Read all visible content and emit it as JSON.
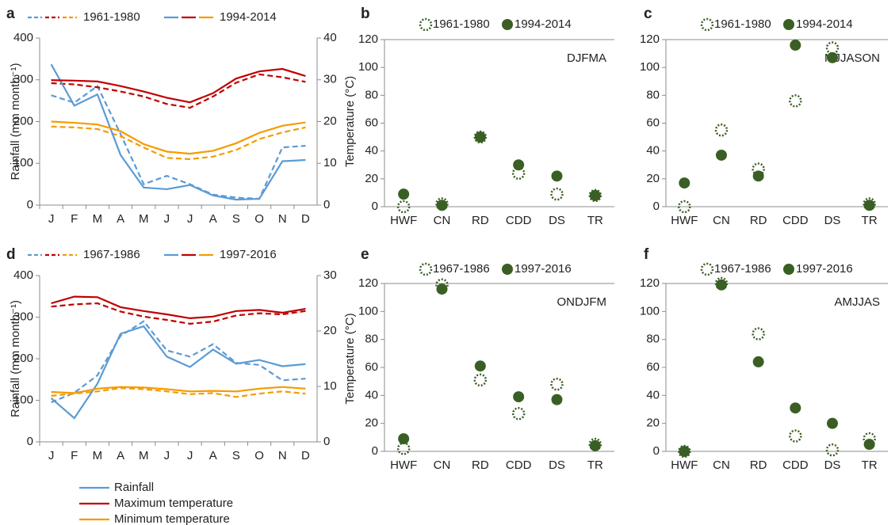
{
  "chart_data": [
    {
      "type": "line",
      "panel": "a",
      "legend": [
        "1961-1980",
        "1994-2014"
      ],
      "categories": [
        "J",
        "F",
        "M",
        "A",
        "M",
        "J",
        "J",
        "A",
        "S",
        "O",
        "N",
        "D"
      ],
      "ylabel": "Rainfall (mm month⁻¹)",
      "y2label": "Temperature (°C)",
      "ylim": [
        0,
        400
      ],
      "yticks": [
        0,
        100,
        200,
        300,
        400
      ],
      "y2lim": [
        0,
        40
      ],
      "y2ticks": [
        0,
        10,
        20,
        30,
        40
      ],
      "series": [
        {
          "color": "#5b9bd5",
          "dash": true,
          "axis": "y",
          "values": [
            263,
            245,
            285,
            170,
            50,
            70,
            50,
            25,
            18,
            15,
            138,
            142
          ]
        },
        {
          "color": "#c00000",
          "dash": true,
          "axis": "y2",
          "values": [
            29.2,
            28.9,
            28.2,
            27.2,
            26,
            24.2,
            23.3,
            26,
            29.3,
            31.3,
            30.6,
            29.5
          ]
        },
        {
          "color": "#f59b00",
          "dash": true,
          "axis": "y2",
          "values": [
            18.8,
            18.6,
            18.2,
            16.5,
            13.8,
            11.3,
            11,
            11.6,
            13.2,
            15.8,
            17.4,
            18.6
          ]
        },
        {
          "color": "#5b9bd5",
          "dash": false,
          "axis": "y",
          "values": [
            337,
            238,
            265,
            120,
            42,
            38,
            48,
            23,
            13,
            15,
            105,
            108
          ]
        },
        {
          "color": "#c00000",
          "dash": false,
          "axis": "y2",
          "values": [
            29.9,
            29.8,
            29.6,
            28.5,
            27.2,
            25.7,
            24.6,
            26.8,
            30.3,
            32,
            32.6,
            30.9
          ]
        },
        {
          "color": "#f59b00",
          "dash": false,
          "axis": "y2",
          "values": [
            20,
            19.7,
            19.3,
            17.7,
            14.6,
            12.8,
            12.3,
            13,
            14.8,
            17.3,
            19,
            19.8
          ]
        }
      ]
    },
    {
      "type": "dot",
      "panel": "b",
      "annotation": "DJFMA",
      "categories": [
        "HWF",
        "CN",
        "RD",
        "CDD",
        "DS",
        "TR"
      ],
      "ylim": [
        0,
        120
      ],
      "yticks": [
        0,
        20,
        40,
        60,
        80,
        100,
        120
      ],
      "color": "#3a5f24",
      "series": [
        {
          "name": "1961-1980",
          "style": "open",
          "values": [
            0,
            2,
            50,
            24,
            9,
            8
          ]
        },
        {
          "name": "1994-2014",
          "style": "filled",
          "values": [
            9,
            1,
            50,
            30,
            22,
            8
          ]
        }
      ]
    },
    {
      "type": "dot",
      "panel": "c",
      "annotation": "MJJASON",
      "categories": [
        "HWF",
        "CN",
        "RD",
        "CDD",
        "DS",
        "TR"
      ],
      "ylim": [
        0,
        120
      ],
      "yticks": [
        0,
        20,
        40,
        60,
        80,
        100,
        120
      ],
      "color": "#3a5f24",
      "series": [
        {
          "name": "1961-1980",
          "style": "open",
          "values": [
            0,
            55,
            27,
            76,
            114,
            2
          ]
        },
        {
          "name": "1994-2014",
          "style": "filled",
          "values": [
            17,
            37,
            22,
            116,
            107,
            1
          ]
        }
      ]
    },
    {
      "type": "line",
      "panel": "d",
      "legend": [
        "1967-1986",
        "1997-2016"
      ],
      "categories": [
        "J",
        "F",
        "M",
        "A",
        "M",
        "J",
        "J",
        "A",
        "S",
        "O",
        "N",
        "D"
      ],
      "ylabel": "Rainfall (mm month⁻¹)",
      "y2label": "Temperature (°C)",
      "ylim": [
        0,
        400
      ],
      "yticks": [
        0,
        100,
        200,
        300,
        400
      ],
      "y2lim": [
        0,
        30
      ],
      "y2ticks": [
        0,
        10,
        20,
        30
      ],
      "series": [
        {
          "color": "#5b9bd5",
          "dash": true,
          "axis": "y",
          "values": [
            95,
            118,
            160,
            255,
            290,
            220,
            205,
            235,
            190,
            185,
            148,
            152
          ]
        },
        {
          "color": "#c00000",
          "dash": true,
          "axis": "y2",
          "values": [
            24.4,
            24.8,
            25,
            23.5,
            22.6,
            22,
            21.3,
            21.7,
            22.8,
            23.2,
            23,
            23.6
          ]
        },
        {
          "color": "#f59b00",
          "dash": true,
          "axis": "y2",
          "values": [
            8.3,
            8.7,
            9.1,
            9.7,
            9.5,
            9.1,
            8.6,
            8.8,
            8.1,
            8.7,
            9.1,
            8.7
          ]
        },
        {
          "color": "#5b9bd5",
          "dash": false,
          "axis": "y",
          "values": [
            105,
            57,
            140,
            260,
            278,
            205,
            180,
            222,
            188,
            197,
            182,
            187
          ]
        },
        {
          "color": "#c00000",
          "dash": false,
          "axis": "y2",
          "values": [
            25,
            26.2,
            26.1,
            24.3,
            23.6,
            23,
            22.3,
            22.6,
            23.6,
            23.8,
            23.3,
            24
          ]
        },
        {
          "color": "#f59b00",
          "dash": false,
          "axis": "y2",
          "values": [
            9,
            8.8,
            9.6,
            9.9,
            9.8,
            9.5,
            9.1,
            9.2,
            9.1,
            9.6,
            9.9,
            9.6
          ]
        }
      ]
    },
    {
      "type": "dot",
      "panel": "e",
      "annotation": "ONDJFM",
      "categories": [
        "HWF",
        "CN",
        "RD",
        "CDD",
        "DS",
        "TR"
      ],
      "ylim": [
        0,
        120
      ],
      "yticks": [
        0,
        20,
        40,
        60,
        80,
        100,
        120
      ],
      "color": "#3a5f24",
      "series": [
        {
          "name": "1967-1986",
          "style": "open",
          "values": [
            2,
            119,
            51,
            27,
            48,
            5
          ]
        },
        {
          "name": "1997-2016",
          "style": "filled",
          "values": [
            9,
            116,
            61,
            39,
            37,
            4
          ]
        }
      ]
    },
    {
      "type": "dot",
      "panel": "f",
      "annotation": "AMJJAS",
      "categories": [
        "HWF",
        "CN",
        "RD",
        "CDD",
        "DS",
        "TR"
      ],
      "ylim": [
        0,
        120
      ],
      "yticks": [
        0,
        20,
        40,
        60,
        80,
        100,
        120
      ],
      "color": "#3a5f24",
      "series": [
        {
          "name": "1967-1986",
          "style": "open",
          "values": [
            0,
            120,
            84,
            11,
            1,
            9
          ]
        },
        {
          "name": "1997-2016",
          "style": "filled",
          "values": [
            0,
            119,
            64,
            31,
            20,
            5
          ]
        }
      ]
    }
  ],
  "legend": [
    {
      "name": "Rainfall",
      "color": "#5b9bd5"
    },
    {
      "name": "Maximum temperature",
      "color": "#c00000"
    },
    {
      "name": "Minimum temperature",
      "color": "#f59b00"
    }
  ]
}
